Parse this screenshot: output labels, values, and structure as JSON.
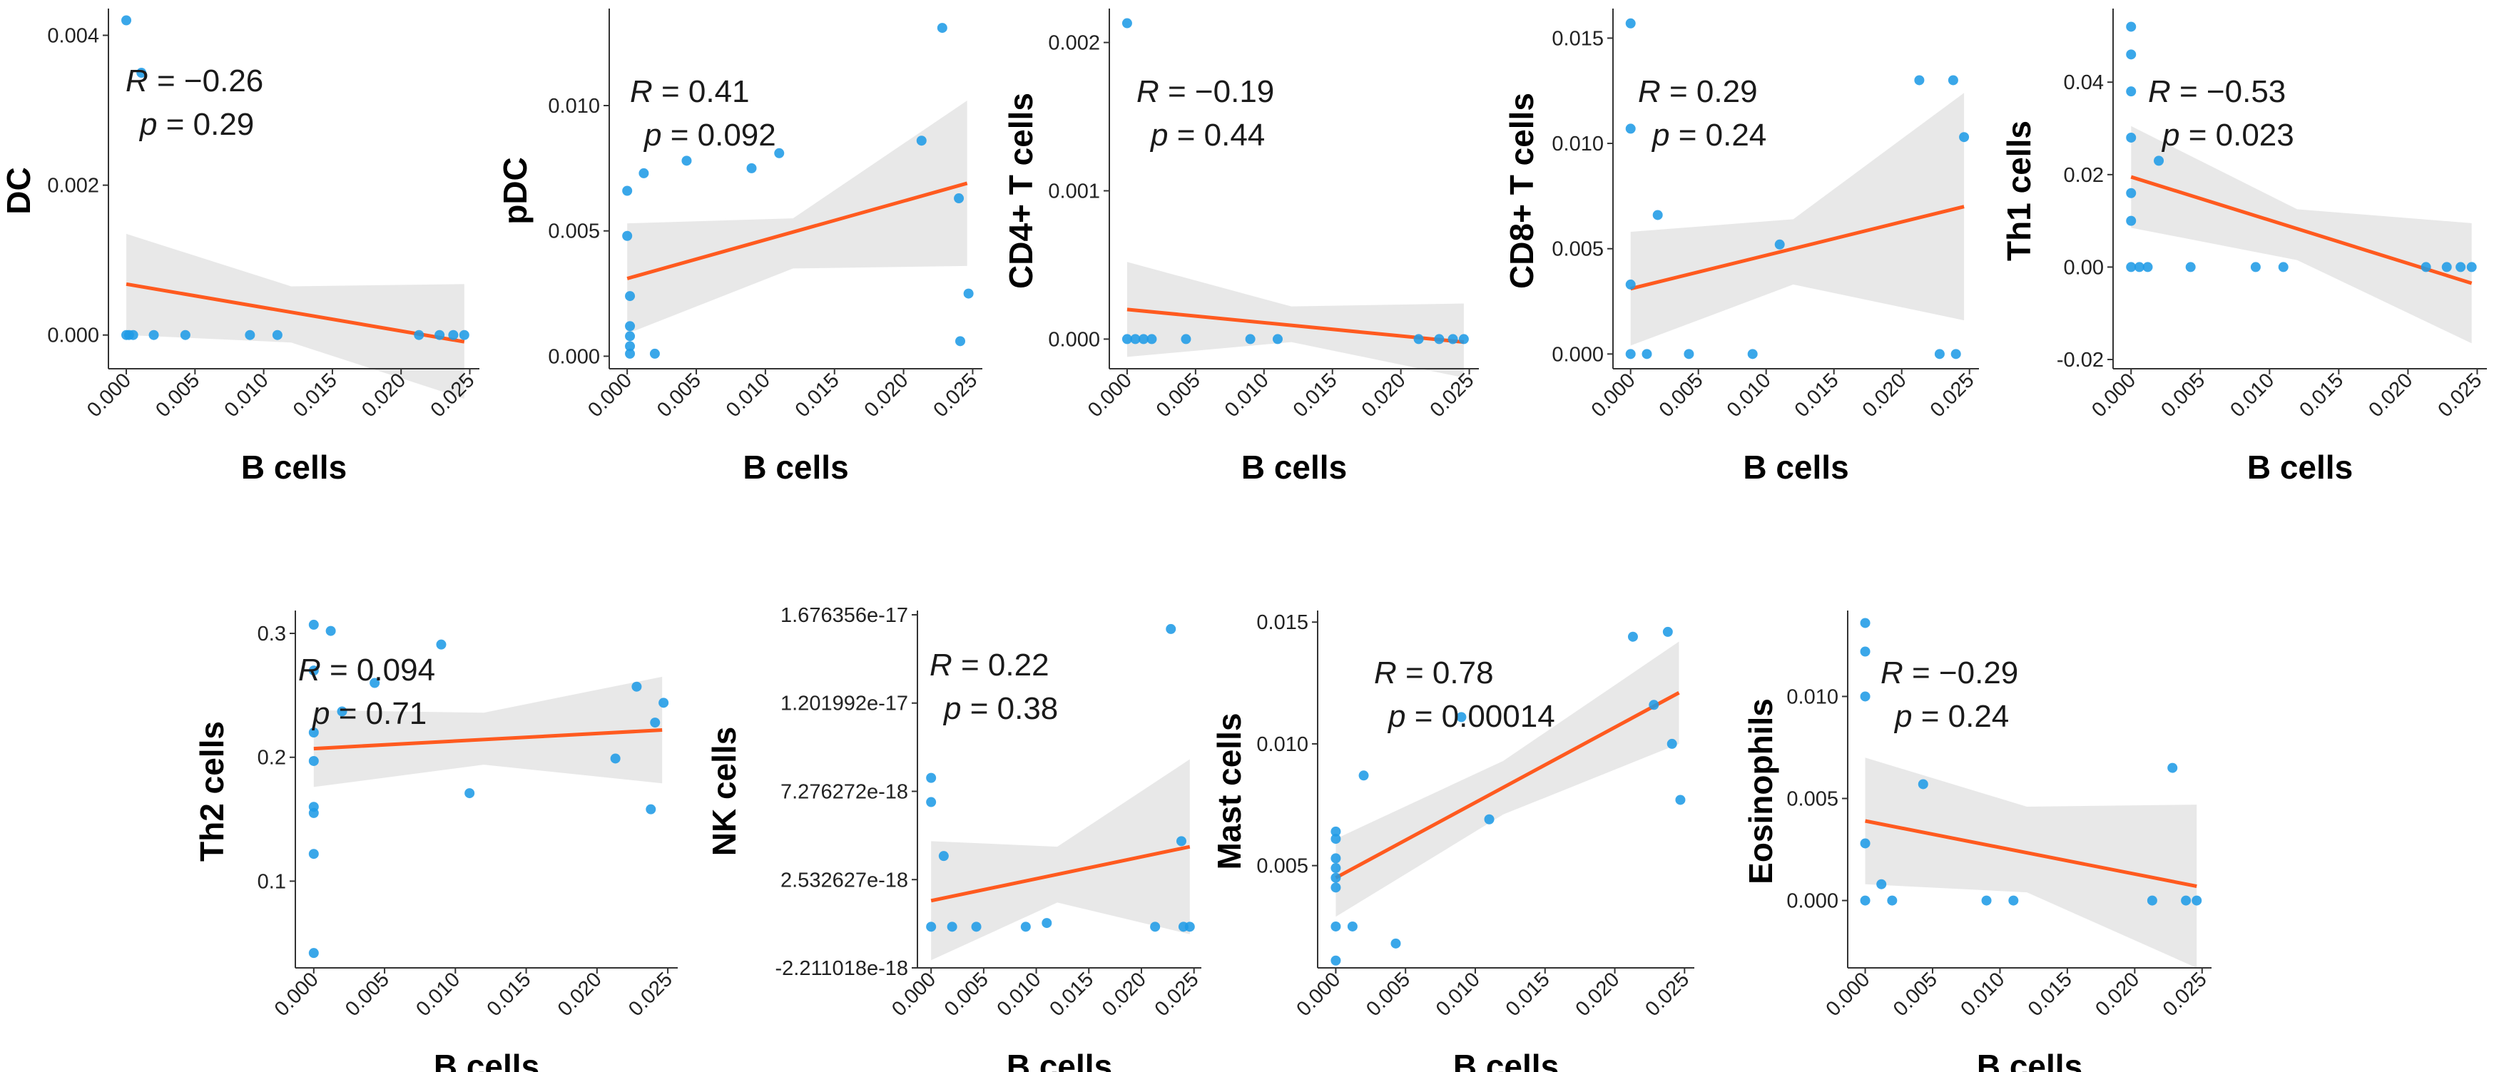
{
  "colors": {
    "point": "#1F9BE6",
    "fit_line": "#FF5A1F",
    "confidence_band": "#E6E6E6",
    "axis": "#333333",
    "text": "#000000"
  },
  "chart_data": [
    {
      "type": "scatter",
      "panel": "DC",
      "xlabel": "B cells",
      "ylabel": "DC",
      "annotation": {
        "r_label": "R",
        "r_value": "= −0.26",
        "p_label": "p",
        "p_value": "= 0.29"
      },
      "xlim": [
        -0.0013,
        0.0257
      ],
      "ylim": [
        -0.00045,
        0.0043
      ],
      "xticks": [
        0.0,
        0.005,
        0.01,
        0.015,
        0.02,
        0.025
      ],
      "xtick_labels": [
        "0.000",
        "0.005",
        "0.010",
        "0.015",
        "0.020",
        "0.025"
      ],
      "yticks": [
        0.0,
        0.002,
        0.004
      ],
      "ytick_labels": [
        "0.000",
        "0.002",
        "0.004"
      ],
      "points": [
        [
          0.0,
          0.0042
        ],
        [
          0.0011,
          0.0035
        ],
        [
          0.0,
          0.0
        ],
        [
          0.0002,
          0.0
        ],
        [
          0.0005,
          0.0
        ],
        [
          0.002,
          0.0
        ],
        [
          0.0043,
          0.0
        ],
        [
          0.009,
          0.0
        ],
        [
          0.011,
          0.0
        ],
        [
          0.0213,
          0.0
        ],
        [
          0.0228,
          0.0
        ],
        [
          0.0238,
          0.0
        ],
        [
          0.0246,
          0.0
        ]
      ],
      "fit": {
        "x": [
          0.0,
          0.0246
        ],
        "y": [
          0.00068,
          -9e-05
        ]
      },
      "band": {
        "x": [
          0.0,
          0.012,
          0.0246
        ],
        "upper": [
          0.00135,
          0.00065,
          0.00068
        ],
        "lower": [
          0.0,
          -0.0001,
          -0.00085
        ]
      }
    },
    {
      "type": "scatter",
      "panel": "pDC",
      "xlabel": "B cells",
      "ylabel": "pDC",
      "annotation": {
        "r_label": "R",
        "r_value": "= 0.41",
        "p_label": "p",
        "p_value": "= 0.092"
      },
      "xlim": [
        -0.0013,
        0.0257
      ],
      "ylim": [
        -0.0005,
        0.0137
      ],
      "xticks": [
        0.0,
        0.005,
        0.01,
        0.015,
        0.02,
        0.025
      ],
      "xtick_labels": [
        "0.000",
        "0.005",
        "0.010",
        "0.015",
        "0.020",
        "0.025"
      ],
      "yticks": [
        0.0,
        0.005,
        0.01
      ],
      "ytick_labels": [
        "0.000",
        "0.005",
        "0.010"
      ],
      "points": [
        [
          0.0,
          0.0066
        ],
        [
          0.0,
          0.0048
        ],
        [
          0.0002,
          0.0024
        ],
        [
          0.0002,
          0.0012
        ],
        [
          0.0002,
          0.0008
        ],
        [
          0.0002,
          0.0004
        ],
        [
          0.0002,
          0.0001
        ],
        [
          0.0012,
          0.0073
        ],
        [
          0.002,
          0.0001
        ],
        [
          0.0043,
          0.0078
        ],
        [
          0.009,
          0.0075
        ],
        [
          0.011,
          0.0081
        ],
        [
          0.0213,
          0.0086
        ],
        [
          0.0228,
          0.0131
        ],
        [
          0.024,
          0.0063
        ],
        [
          0.0241,
          0.0006
        ],
        [
          0.0247,
          0.0025
        ]
      ],
      "fit": {
        "x": [
          0.0,
          0.0246
        ],
        "y": [
          0.0031,
          0.0069
        ]
      },
      "band": {
        "x": [
          0.0,
          0.012,
          0.0246
        ],
        "upper": [
          0.0053,
          0.0055,
          0.0102
        ],
        "lower": [
          0.0009,
          0.0035,
          0.0036
        ]
      }
    },
    {
      "type": "scatter",
      "panel": "CD4+ T cells",
      "xlabel": "B cells",
      "ylabel": "CD4+ T cells",
      "annotation": {
        "r_label": "R",
        "r_value": "= −0.19",
        "p_label": "p",
        "p_value": "= 0.44"
      },
      "xlim": [
        -0.0013,
        0.0257
      ],
      "ylim": [
        -0.0002,
        0.0022
      ],
      "xticks": [
        0.0,
        0.005,
        0.01,
        0.015,
        0.02,
        0.025
      ],
      "xtick_labels": [
        "0.000",
        "0.005",
        "0.010",
        "0.015",
        "0.020",
        "0.025"
      ],
      "yticks": [
        0.0,
        0.001,
        0.002
      ],
      "ytick_labels": [
        "0.000",
        "0.001",
        "0.002"
      ],
      "points": [
        [
          0.0,
          0.00213
        ],
        [
          0.0,
          0.0
        ],
        [
          0.0006,
          0.0
        ],
        [
          0.0012,
          0.0
        ],
        [
          0.0018,
          0.0
        ],
        [
          0.0043,
          0.0
        ],
        [
          0.009,
          0.0
        ],
        [
          0.011,
          0.0
        ],
        [
          0.0213,
          0.0
        ],
        [
          0.0228,
          0.0
        ],
        [
          0.0238,
          0.0
        ],
        [
          0.0246,
          0.0
        ]
      ],
      "fit": {
        "x": [
          0.0,
          0.0246
        ],
        "y": [
          0.0002,
          -2e-05
        ]
      },
      "band": {
        "x": [
          0.0,
          0.012,
          0.0246
        ],
        "upper": [
          0.00052,
          0.00022,
          0.00024
        ],
        "lower": [
          -0.00012,
          -2e-05,
          -0.00026
        ]
      }
    },
    {
      "type": "scatter",
      "panel": "CD8+ T cells",
      "xlabel": "B cells",
      "ylabel": "CD8+ T cells",
      "annotation": {
        "r_label": "R",
        "r_value": "= 0.29",
        "p_label": "p",
        "p_value": "= 0.24"
      },
      "xlim": [
        -0.0013,
        0.0257
      ],
      "ylim": [
        -0.0007,
        0.0162
      ],
      "xticks": [
        0.0,
        0.005,
        0.01,
        0.015,
        0.02,
        0.025
      ],
      "xtick_labels": [
        "0.000",
        "0.005",
        "0.010",
        "0.015",
        "0.020",
        "0.025"
      ],
      "yticks": [
        0.0,
        0.005,
        0.01,
        0.015
      ],
      "ytick_labels": [
        "0.000",
        "0.005",
        "0.010",
        "0.015"
      ],
      "points": [
        [
          0.0,
          0.0157
        ],
        [
          0.0,
          0.0107
        ],
        [
          0.0,
          0.0033
        ],
        [
          0.0,
          0.0
        ],
        [
          0.0012,
          0.0
        ],
        [
          0.002,
          0.0066
        ],
        [
          0.0043,
          0.0
        ],
        [
          0.009,
          0.0
        ],
        [
          0.011,
          0.0052
        ],
        [
          0.0213,
          0.013
        ],
        [
          0.0228,
          0.0
        ],
        [
          0.0238,
          0.013
        ],
        [
          0.024,
          0.0
        ],
        [
          0.0246,
          0.0103
        ]
      ],
      "fit": {
        "x": [
          0.0,
          0.0246
        ],
        "y": [
          0.0031,
          0.007
        ]
      },
      "band": {
        "x": [
          0.0,
          0.012,
          0.0246
        ],
        "upper": [
          0.0058,
          0.0064,
          0.0124
        ],
        "lower": [
          0.0004,
          0.0033,
          0.0016
        ]
      }
    },
    {
      "type": "scatter",
      "panel": "Th1 cells",
      "xlabel": "B cells",
      "ylabel": "Th1 cells",
      "annotation": {
        "r_label": "R",
        "r_value": "= −0.53",
        "p_label": "p",
        "p_value": "= 0.023"
      },
      "xlim": [
        -0.0013,
        0.0257
      ],
      "ylim": [
        -0.022,
        0.055
      ],
      "xticks": [
        0.0,
        0.005,
        0.01,
        0.015,
        0.02,
        0.025
      ],
      "xtick_labels": [
        "0.000",
        "0.005",
        "0.010",
        "0.015",
        "0.020",
        "0.025"
      ],
      "yticks": [
        -0.02,
        0.0,
        0.02,
        0.04
      ],
      "ytick_labels": [
        "-0.02",
        "0.00",
        "0.02",
        "0.04"
      ],
      "points": [
        [
          0.0,
          0.052
        ],
        [
          0.0,
          0.046
        ],
        [
          0.0,
          0.038
        ],
        [
          0.0,
          0.028
        ],
        [
          0.0,
          0.016
        ],
        [
          0.0,
          0.01
        ],
        [
          0.0,
          0.0
        ],
        [
          0.0006,
          0.0
        ],
        [
          0.0012,
          0.0
        ],
        [
          0.002,
          0.023
        ],
        [
          0.0043,
          0.0
        ],
        [
          0.009,
          0.0
        ],
        [
          0.011,
          0.0
        ],
        [
          0.0213,
          0.0
        ],
        [
          0.0228,
          0.0
        ],
        [
          0.0238,
          0.0
        ],
        [
          0.0246,
          0.0
        ]
      ],
      "fit": {
        "x": [
          0.0,
          0.0246
        ],
        "y": [
          0.0195,
          -0.0035
        ]
      },
      "band": {
        "x": [
          0.0,
          0.012,
          0.0246
        ],
        "upper": [
          0.0305,
          0.0125,
          0.0095
        ],
        "lower": [
          0.0085,
          0.0015,
          -0.0165
        ]
      }
    },
    {
      "type": "scatter",
      "panel": "Th2 cells",
      "xlabel": "B cells",
      "ylabel": "Th2 cells",
      "annotation": {
        "r_label": "R",
        "r_value": "= 0.094",
        "p_label": "p",
        "p_value": "= 0.71"
      },
      "xlim": [
        -0.0013,
        0.0257
      ],
      "ylim": [
        0.03,
        0.315
      ],
      "xticks": [
        0.0,
        0.005,
        0.01,
        0.015,
        0.02,
        0.025
      ],
      "xtick_labels": [
        "0.000",
        "0.005",
        "0.010",
        "0.015",
        "0.020",
        "0.025"
      ],
      "yticks": [
        0.1,
        0.2,
        0.3
      ],
      "ytick_labels": [
        "0.1",
        "0.2",
        "0.3"
      ],
      "points": [
        [
          0.0,
          0.307
        ],
        [
          0.0,
          0.27
        ],
        [
          0.0,
          0.22
        ],
        [
          0.0,
          0.197
        ],
        [
          0.0,
          0.16
        ],
        [
          0.0,
          0.155
        ],
        [
          0.0,
          0.122
        ],
        [
          0.0,
          0.042
        ],
        [
          0.0012,
          0.302
        ],
        [
          0.002,
          0.237
        ],
        [
          0.0043,
          0.26
        ],
        [
          0.009,
          0.291
        ],
        [
          0.011,
          0.171
        ],
        [
          0.0213,
          0.199
        ],
        [
          0.0228,
          0.257
        ],
        [
          0.0238,
          0.158
        ],
        [
          0.0241,
          0.228
        ],
        [
          0.0247,
          0.244
        ]
      ],
      "fit": {
        "x": [
          0.0,
          0.0246
        ],
        "y": [
          0.207,
          0.222
        ]
      },
      "band": {
        "x": [
          0.0,
          0.012,
          0.0246
        ],
        "upper": [
          0.238,
          0.236,
          0.265
        ],
        "lower": [
          0.176,
          0.194,
          0.179
        ]
      }
    },
    {
      "type": "scatter",
      "panel": "NK cells",
      "xlabel": "B cells",
      "ylabel": "NK cells",
      "annotation": {
        "r_label": "R",
        "r_value": "= 0.22",
        "p_label": "p",
        "p_value": "= 0.38"
      },
      "xlim": [
        -0.0013,
        0.0257
      ],
      "ylim": [
        -2.211018e-18,
        1.676356e-17
      ],
      "xticks": [
        0.0,
        0.005,
        0.01,
        0.015,
        0.02,
        0.025
      ],
      "xtick_labels": [
        "0.000",
        "0.005",
        "0.010",
        "0.015",
        "0.020",
        "0.025"
      ],
      "yticks": [
        -2.211018e-18,
        2.532627e-18,
        7.276272e-18,
        1.201992e-17,
        1.676356e-17
      ],
      "ytick_labels": [
        "-2.211018e-18",
        "2.532627e-18",
        "7.276272e-18",
        "1.201992e-17",
        "1.676356e-17"
      ],
      "points": [
        [
          0.0,
          8e-18
        ],
        [
          0.0,
          6.7e-18
        ],
        [
          0.0,
          0.0
        ],
        [
          0.0012,
          3.8e-18
        ],
        [
          0.002,
          0.0
        ],
        [
          0.0043,
          0.0
        ],
        [
          0.009,
          0.0
        ],
        [
          0.011,
          2e-19
        ],
        [
          0.0213,
          0.0
        ],
        [
          0.0228,
          1.6e-17
        ],
        [
          0.0238,
          4.6e-18
        ],
        [
          0.024,
          0.0
        ],
        [
          0.0246,
          0.0
        ]
      ],
      "fit": {
        "x": [
          0.0,
          0.0246
        ],
        "y": [
          1.4e-18,
          4.3e-18
        ]
      },
      "band": {
        "x": [
          0.0,
          0.012,
          0.0246
        ],
        "upper": [
          4.6e-18,
          4.3e-18,
          9e-18
        ],
        "lower": [
          -1.8e-18,
          1.3e-18,
          -4e-19
        ]
      }
    },
    {
      "type": "scatter",
      "panel": "Mast cells",
      "xlabel": "B cells",
      "ylabel": "Mast cells",
      "annotation": {
        "r_label": "R",
        "r_value": "= 0.78",
        "p_label": "p",
        "p_value": "= 0.00014"
      },
      "xlim": [
        -0.0013,
        0.0257
      ],
      "ylim": [
        0.0008,
        0.0153
      ],
      "xticks": [
        0.0,
        0.005,
        0.01,
        0.015,
        0.02,
        0.025
      ],
      "xtick_labels": [
        "0.000",
        "0.005",
        "0.010",
        "0.015",
        "0.020",
        "0.025"
      ],
      "yticks": [
        0.005,
        0.01,
        0.015
      ],
      "ytick_labels": [
        "0.005",
        "0.010",
        "0.015"
      ],
      "points": [
        [
          0.0,
          0.0064
        ],
        [
          0.0,
          0.0061
        ],
        [
          0.0,
          0.0053
        ],
        [
          0.0,
          0.0049
        ],
        [
          0.0,
          0.0045
        ],
        [
          0.0,
          0.0041
        ],
        [
          0.0,
          0.0025
        ],
        [
          0.0,
          0.0011
        ],
        [
          0.0012,
          0.0025
        ],
        [
          0.002,
          0.0087
        ],
        [
          0.0043,
          0.0018
        ],
        [
          0.009,
          0.0111
        ],
        [
          0.011,
          0.0069
        ],
        [
          0.0213,
          0.0144
        ],
        [
          0.0228,
          0.0116
        ],
        [
          0.0238,
          0.0146
        ],
        [
          0.0241,
          0.01
        ],
        [
          0.0247,
          0.0077
        ]
      ],
      "fit": {
        "x": [
          0.0,
          0.0246
        ],
        "y": [
          0.0045,
          0.0121
        ]
      },
      "band": {
        "x": [
          0.0,
          0.012,
          0.0246
        ],
        "upper": [
          0.0061,
          0.0093,
          0.0142
        ],
        "lower": [
          0.0029,
          0.0071,
          0.01
        ]
      }
    },
    {
      "type": "scatter",
      "panel": "Eosinophils",
      "xlabel": "B cells",
      "ylabel": "Eosinophils",
      "annotation": {
        "r_label": "R",
        "r_value": "= −0.29",
        "p_label": "p",
        "p_value": "= 0.24"
      },
      "xlim": [
        -0.0013,
        0.0257
      ],
      "ylim": [
        -0.0033,
        0.014
      ],
      "xticks": [
        0.0,
        0.005,
        0.01,
        0.015,
        0.02,
        0.025
      ],
      "xtick_labels": [
        "0.000",
        "0.005",
        "0.010",
        "0.015",
        "0.020",
        "0.025"
      ],
      "yticks": [
        0.0,
        0.005,
        0.01
      ],
      "ytick_labels": [
        "0.000",
        "0.005",
        "0.010"
      ],
      "points": [
        [
          0.0,
          0.0136
        ],
        [
          0.0,
          0.0122
        ],
        [
          0.0,
          0.01
        ],
        [
          0.0,
          0.0028
        ],
        [
          0.0,
          0.0
        ],
        [
          0.0012,
          0.0008
        ],
        [
          0.002,
          0.0
        ],
        [
          0.0043,
          0.0057
        ],
        [
          0.009,
          0.0
        ],
        [
          0.011,
          0.0
        ],
        [
          0.0213,
          0.0
        ],
        [
          0.0228,
          0.0065
        ],
        [
          0.0238,
          0.0
        ],
        [
          0.0246,
          0.0
        ]
      ],
      "fit": {
        "x": [
          0.0,
          0.0246
        ],
        "y": [
          0.0039,
          0.0007
        ]
      },
      "band": {
        "x": [
          0.0,
          0.012,
          0.0246
        ],
        "upper": [
          0.007,
          0.0046,
          0.0047
        ],
        "lower": [
          0.0008,
          0.0004,
          -0.0033
        ]
      }
    }
  ]
}
